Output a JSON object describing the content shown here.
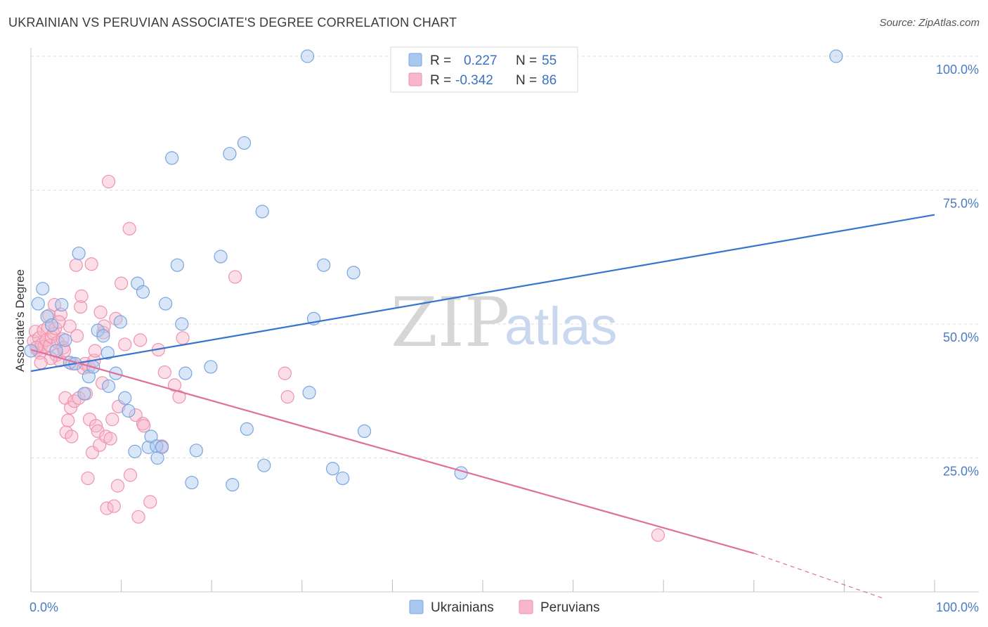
{
  "title": "UKRAINIAN VS PERUVIAN ASSOCIATE'S DEGREE CORRELATION CHART",
  "source": "Source: ZipAtlas.com",
  "watermark": {
    "zip": "ZIP",
    "atlas": "atlas"
  },
  "colors": {
    "ukrainians_fill": "#a8c8f0",
    "ukrainians_stroke": "#7aa6de",
    "ukrainians_line": "#3575cc",
    "peruvians_fill": "#f7b6c9",
    "peruvians_stroke": "#ee93b0",
    "peruvians_line": "#e0709a",
    "grid": "#dddddd",
    "axis_label": "#4a7cc4"
  },
  "legend": {
    "rows": [
      {
        "r_label": "R =",
        "r_value": "0.227",
        "n_label": "N =",
        "n_value": "55"
      },
      {
        "r_label": "R =",
        "r_value": "-0.342",
        "n_label": "N =",
        "n_value": "86"
      }
    ]
  },
  "chart_data": {
    "type": "scatter",
    "title": "UKRAINIAN VS PERUVIAN ASSOCIATE'S DEGREE CORRELATION CHART",
    "xlabel": "",
    "ylabel": "Associate's Degree",
    "xlim": [
      0,
      100
    ],
    "ylim": [
      0,
      100
    ],
    "x_tick_labels": [
      "0.0%",
      "100.0%"
    ],
    "y_tick_labels": [
      "25.0%",
      "50.0%",
      "75.0%",
      "100.0%"
    ],
    "y_ticks": [
      25,
      50,
      75,
      100
    ],
    "grid": true,
    "legend_position": "top-center",
    "series": [
      {
        "name": "Ukrainians",
        "R": 0.227,
        "N": 55,
        "trend": {
          "x0": 0,
          "y0": 41.2,
          "x1": 100,
          "y1": 70.4
        },
        "points": [
          {
            "x": 0.0,
            "y": 45.0
          },
          {
            "x": 0.8,
            "y": 53.8
          },
          {
            "x": 1.3,
            "y": 56.6
          },
          {
            "x": 1.8,
            "y": 51.4
          },
          {
            "x": 2.3,
            "y": 49.8
          },
          {
            "x": 3.4,
            "y": 53.6
          },
          {
            "x": 3.8,
            "y": 47.0
          },
          {
            "x": 2.8,
            "y": 45.0
          },
          {
            "x": 4.3,
            "y": 42.8
          },
          {
            "x": 4.9,
            "y": 42.6
          },
          {
            "x": 5.3,
            "y": 63.2
          },
          {
            "x": 5.9,
            "y": 37.0
          },
          {
            "x": 6.4,
            "y": 40.2
          },
          {
            "x": 6.9,
            "y": 42.0
          },
          {
            "x": 7.4,
            "y": 48.8
          },
          {
            "x": 8.0,
            "y": 47.8
          },
          {
            "x": 8.5,
            "y": 44.6
          },
          {
            "x": 8.6,
            "y": 38.4
          },
          {
            "x": 9.4,
            "y": 40.8
          },
          {
            "x": 9.9,
            "y": 50.4
          },
          {
            "x": 10.4,
            "y": 36.2
          },
          {
            "x": 10.8,
            "y": 33.8
          },
          {
            "x": 11.5,
            "y": 26.2
          },
          {
            "x": 11.8,
            "y": 57.6
          },
          {
            "x": 12.4,
            "y": 56.0
          },
          {
            "x": 13.0,
            "y": 27.0
          },
          {
            "x": 13.3,
            "y": 29.0
          },
          {
            "x": 13.9,
            "y": 27.2
          },
          {
            "x": 14.0,
            "y": 25.0
          },
          {
            "x": 14.5,
            "y": 27.0
          },
          {
            "x": 14.9,
            "y": 53.8
          },
          {
            "x": 15.6,
            "y": 81.0
          },
          {
            "x": 16.2,
            "y": 61.0
          },
          {
            "x": 16.7,
            "y": 50.0
          },
          {
            "x": 17.1,
            "y": 40.8
          },
          {
            "x": 17.8,
            "y": 20.4
          },
          {
            "x": 18.3,
            "y": 26.4
          },
          {
            "x": 19.9,
            "y": 42.0
          },
          {
            "x": 21.0,
            "y": 62.6
          },
          {
            "x": 22.0,
            "y": 81.8
          },
          {
            "x": 22.3,
            "y": 20.0
          },
          {
            "x": 23.6,
            "y": 83.8
          },
          {
            "x": 23.9,
            "y": 30.4
          },
          {
            "x": 25.6,
            "y": 71.0
          },
          {
            "x": 25.8,
            "y": 23.6
          },
          {
            "x": 30.6,
            "y": 100.0
          },
          {
            "x": 30.8,
            "y": 37.2
          },
          {
            "x": 31.3,
            "y": 51.0
          },
          {
            "x": 32.4,
            "y": 61.0
          },
          {
            "x": 33.4,
            "y": 23.0
          },
          {
            "x": 34.5,
            "y": 21.2
          },
          {
            "x": 35.7,
            "y": 59.6
          },
          {
            "x": 36.9,
            "y": 30.0
          },
          {
            "x": 47.6,
            "y": 22.2
          },
          {
            "x": 89.1,
            "y": 100.0
          }
        ]
      },
      {
        "name": "Peruvians",
        "R": -0.342,
        "N": 86,
        "trend": {
          "x0": 0,
          "y0": 45.2,
          "x1": 80,
          "y1": 7.2,
          "dash_x1": 100,
          "dash_y1": -2.4
        },
        "points": [
          {
            "x": 0.3,
            "y": 46.8
          },
          {
            "x": 0.5,
            "y": 48.6
          },
          {
            "x": 0.7,
            "y": 45.2
          },
          {
            "x": 0.9,
            "y": 47.4
          },
          {
            "x": 1.0,
            "y": 44.6
          },
          {
            "x": 1.2,
            "y": 46.2
          },
          {
            "x": 1.4,
            "y": 48.8
          },
          {
            "x": 1.5,
            "y": 45.8
          },
          {
            "x": 1.7,
            "y": 47.0
          },
          {
            "x": 1.9,
            "y": 49.4
          },
          {
            "x": 2.0,
            "y": 51.6
          },
          {
            "x": 2.1,
            "y": 46.0
          },
          {
            "x": 2.3,
            "y": 47.6
          },
          {
            "x": 2.5,
            "y": 48.2
          },
          {
            "x": 2.6,
            "y": 53.6
          },
          {
            "x": 2.8,
            "y": 44.2
          },
          {
            "x": 3.0,
            "y": 46.6
          },
          {
            "x": 3.2,
            "y": 43.2
          },
          {
            "x": 3.3,
            "y": 51.8
          },
          {
            "x": 3.5,
            "y": 47.2
          },
          {
            "x": 3.6,
            "y": 45.6
          },
          {
            "x": 3.8,
            "y": 36.2
          },
          {
            "x": 3.9,
            "y": 29.8
          },
          {
            "x": 4.1,
            "y": 32.0
          },
          {
            "x": 4.3,
            "y": 49.6
          },
          {
            "x": 4.4,
            "y": 34.4
          },
          {
            "x": 4.5,
            "y": 29.0
          },
          {
            "x": 4.8,
            "y": 35.6
          },
          {
            "x": 5.0,
            "y": 61.0
          },
          {
            "x": 5.1,
            "y": 47.8
          },
          {
            "x": 5.3,
            "y": 36.2
          },
          {
            "x": 5.5,
            "y": 53.2
          },
          {
            "x": 5.6,
            "y": 55.2
          },
          {
            "x": 5.8,
            "y": 41.8
          },
          {
            "x": 6.0,
            "y": 42.6
          },
          {
            "x": 6.1,
            "y": 37.0
          },
          {
            "x": 6.3,
            "y": 21.2
          },
          {
            "x": 6.4,
            "y": 42.0
          },
          {
            "x": 6.5,
            "y": 32.2
          },
          {
            "x": 6.7,
            "y": 61.2
          },
          {
            "x": 6.8,
            "y": 26.0
          },
          {
            "x": 7.0,
            "y": 43.2
          },
          {
            "x": 7.1,
            "y": 45.0
          },
          {
            "x": 7.2,
            "y": 31.0
          },
          {
            "x": 7.4,
            "y": 30.0
          },
          {
            "x": 7.6,
            "y": 27.4
          },
          {
            "x": 7.7,
            "y": 52.2
          },
          {
            "x": 7.9,
            "y": 39.0
          },
          {
            "x": 8.0,
            "y": 48.4
          },
          {
            "x": 8.1,
            "y": 49.6
          },
          {
            "x": 8.3,
            "y": 29.0
          },
          {
            "x": 8.4,
            "y": 15.6
          },
          {
            "x": 8.6,
            "y": 76.6
          },
          {
            "x": 8.8,
            "y": 28.6
          },
          {
            "x": 9.0,
            "y": 32.2
          },
          {
            "x": 9.2,
            "y": 16.0
          },
          {
            "x": 9.4,
            "y": 51.0
          },
          {
            "x": 9.6,
            "y": 19.8
          },
          {
            "x": 9.7,
            "y": 34.6
          },
          {
            "x": 10.0,
            "y": 57.6
          },
          {
            "x": 10.4,
            "y": 46.2
          },
          {
            "x": 10.9,
            "y": 67.8
          },
          {
            "x": 11.0,
            "y": 21.8
          },
          {
            "x": 11.6,
            "y": 33.0
          },
          {
            "x": 11.9,
            "y": 14.0
          },
          {
            "x": 12.1,
            "y": 47.0
          },
          {
            "x": 12.4,
            "y": 31.4
          },
          {
            "x": 12.5,
            "y": 31.0
          },
          {
            "x": 13.2,
            "y": 16.8
          },
          {
            "x": 14.1,
            "y": 45.2
          },
          {
            "x": 14.5,
            "y": 27.2
          },
          {
            "x": 14.8,
            "y": 41.0
          },
          {
            "x": 15.9,
            "y": 38.6
          },
          {
            "x": 16.4,
            "y": 36.4
          },
          {
            "x": 16.8,
            "y": 47.4
          },
          {
            "x": 22.6,
            "y": 58.8
          },
          {
            "x": 28.1,
            "y": 40.8
          },
          {
            "x": 28.4,
            "y": 36.4
          },
          {
            "x": 69.4,
            "y": 10.6
          },
          {
            "x": 2.2,
            "y": 43.6
          },
          {
            "x": 3.7,
            "y": 45.0
          },
          {
            "x": 4.6,
            "y": 42.6
          },
          {
            "x": 1.1,
            "y": 42.8
          },
          {
            "x": 2.7,
            "y": 49.2
          },
          {
            "x": 3.1,
            "y": 50.4
          },
          {
            "x": 0.6,
            "y": 45.6
          }
        ]
      }
    ]
  },
  "bottom_legend": [
    "Ukrainians",
    "Peruvians"
  ]
}
